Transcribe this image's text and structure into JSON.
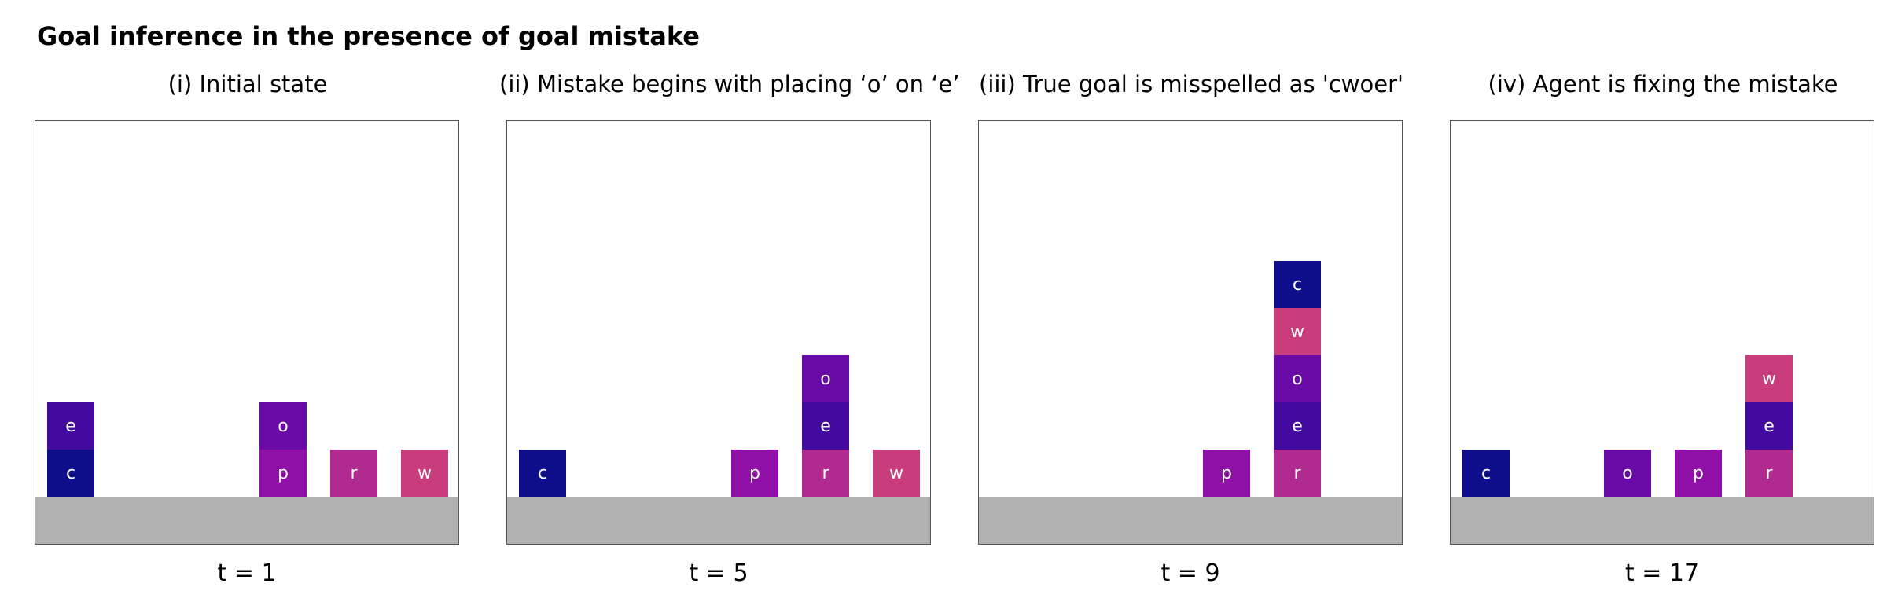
{
  "title": "Goal inference in the presence of goal mistake",
  "letter_colors": {
    "c": "#0f0e8a",
    "e": "#420a9f",
    "o": "#6a0ba8",
    "p": "#8e10a6",
    "r": "#b12a90",
    "w": "#c93d7c"
  },
  "ground_color": "#b0b0b0",
  "panels": [
    {
      "title": "(i) Initial state",
      "time": "t = 1",
      "stacks": [
        {
          "column": 0,
          "blocks": [
            "c",
            "e"
          ]
        },
        {
          "column": 3,
          "blocks": [
            "p",
            "o"
          ]
        },
        {
          "column": 4,
          "blocks": [
            "r"
          ]
        },
        {
          "column": 5,
          "blocks": [
            "w"
          ]
        }
      ]
    },
    {
      "title": "(ii) Mistake begins with placing ‘o’ on ‘e’",
      "time": "t = 5",
      "stacks": [
        {
          "column": 0,
          "blocks": [
            "c"
          ]
        },
        {
          "column": 3,
          "blocks": [
            "p"
          ]
        },
        {
          "column": 4,
          "blocks": [
            "r",
            "e",
            "o"
          ]
        },
        {
          "column": 5,
          "blocks": [
            "w"
          ]
        }
      ]
    },
    {
      "title": "(iii) True goal is misspelled as 'cwoer'",
      "time": "t = 9",
      "stacks": [
        {
          "column": 3,
          "blocks": [
            "p"
          ]
        },
        {
          "column": 4,
          "blocks": [
            "r",
            "e",
            "o",
            "w",
            "c"
          ]
        }
      ]
    },
    {
      "title": "(iv) Agent is fixing the mistake",
      "time": "t = 17",
      "stacks": [
        {
          "column": 0,
          "blocks": [
            "c"
          ]
        },
        {
          "column": 2,
          "blocks": [
            "o"
          ]
        },
        {
          "column": 3,
          "blocks": [
            "p"
          ]
        },
        {
          "column": 4,
          "blocks": [
            "r",
            "e",
            "w"
          ]
        }
      ]
    }
  ]
}
